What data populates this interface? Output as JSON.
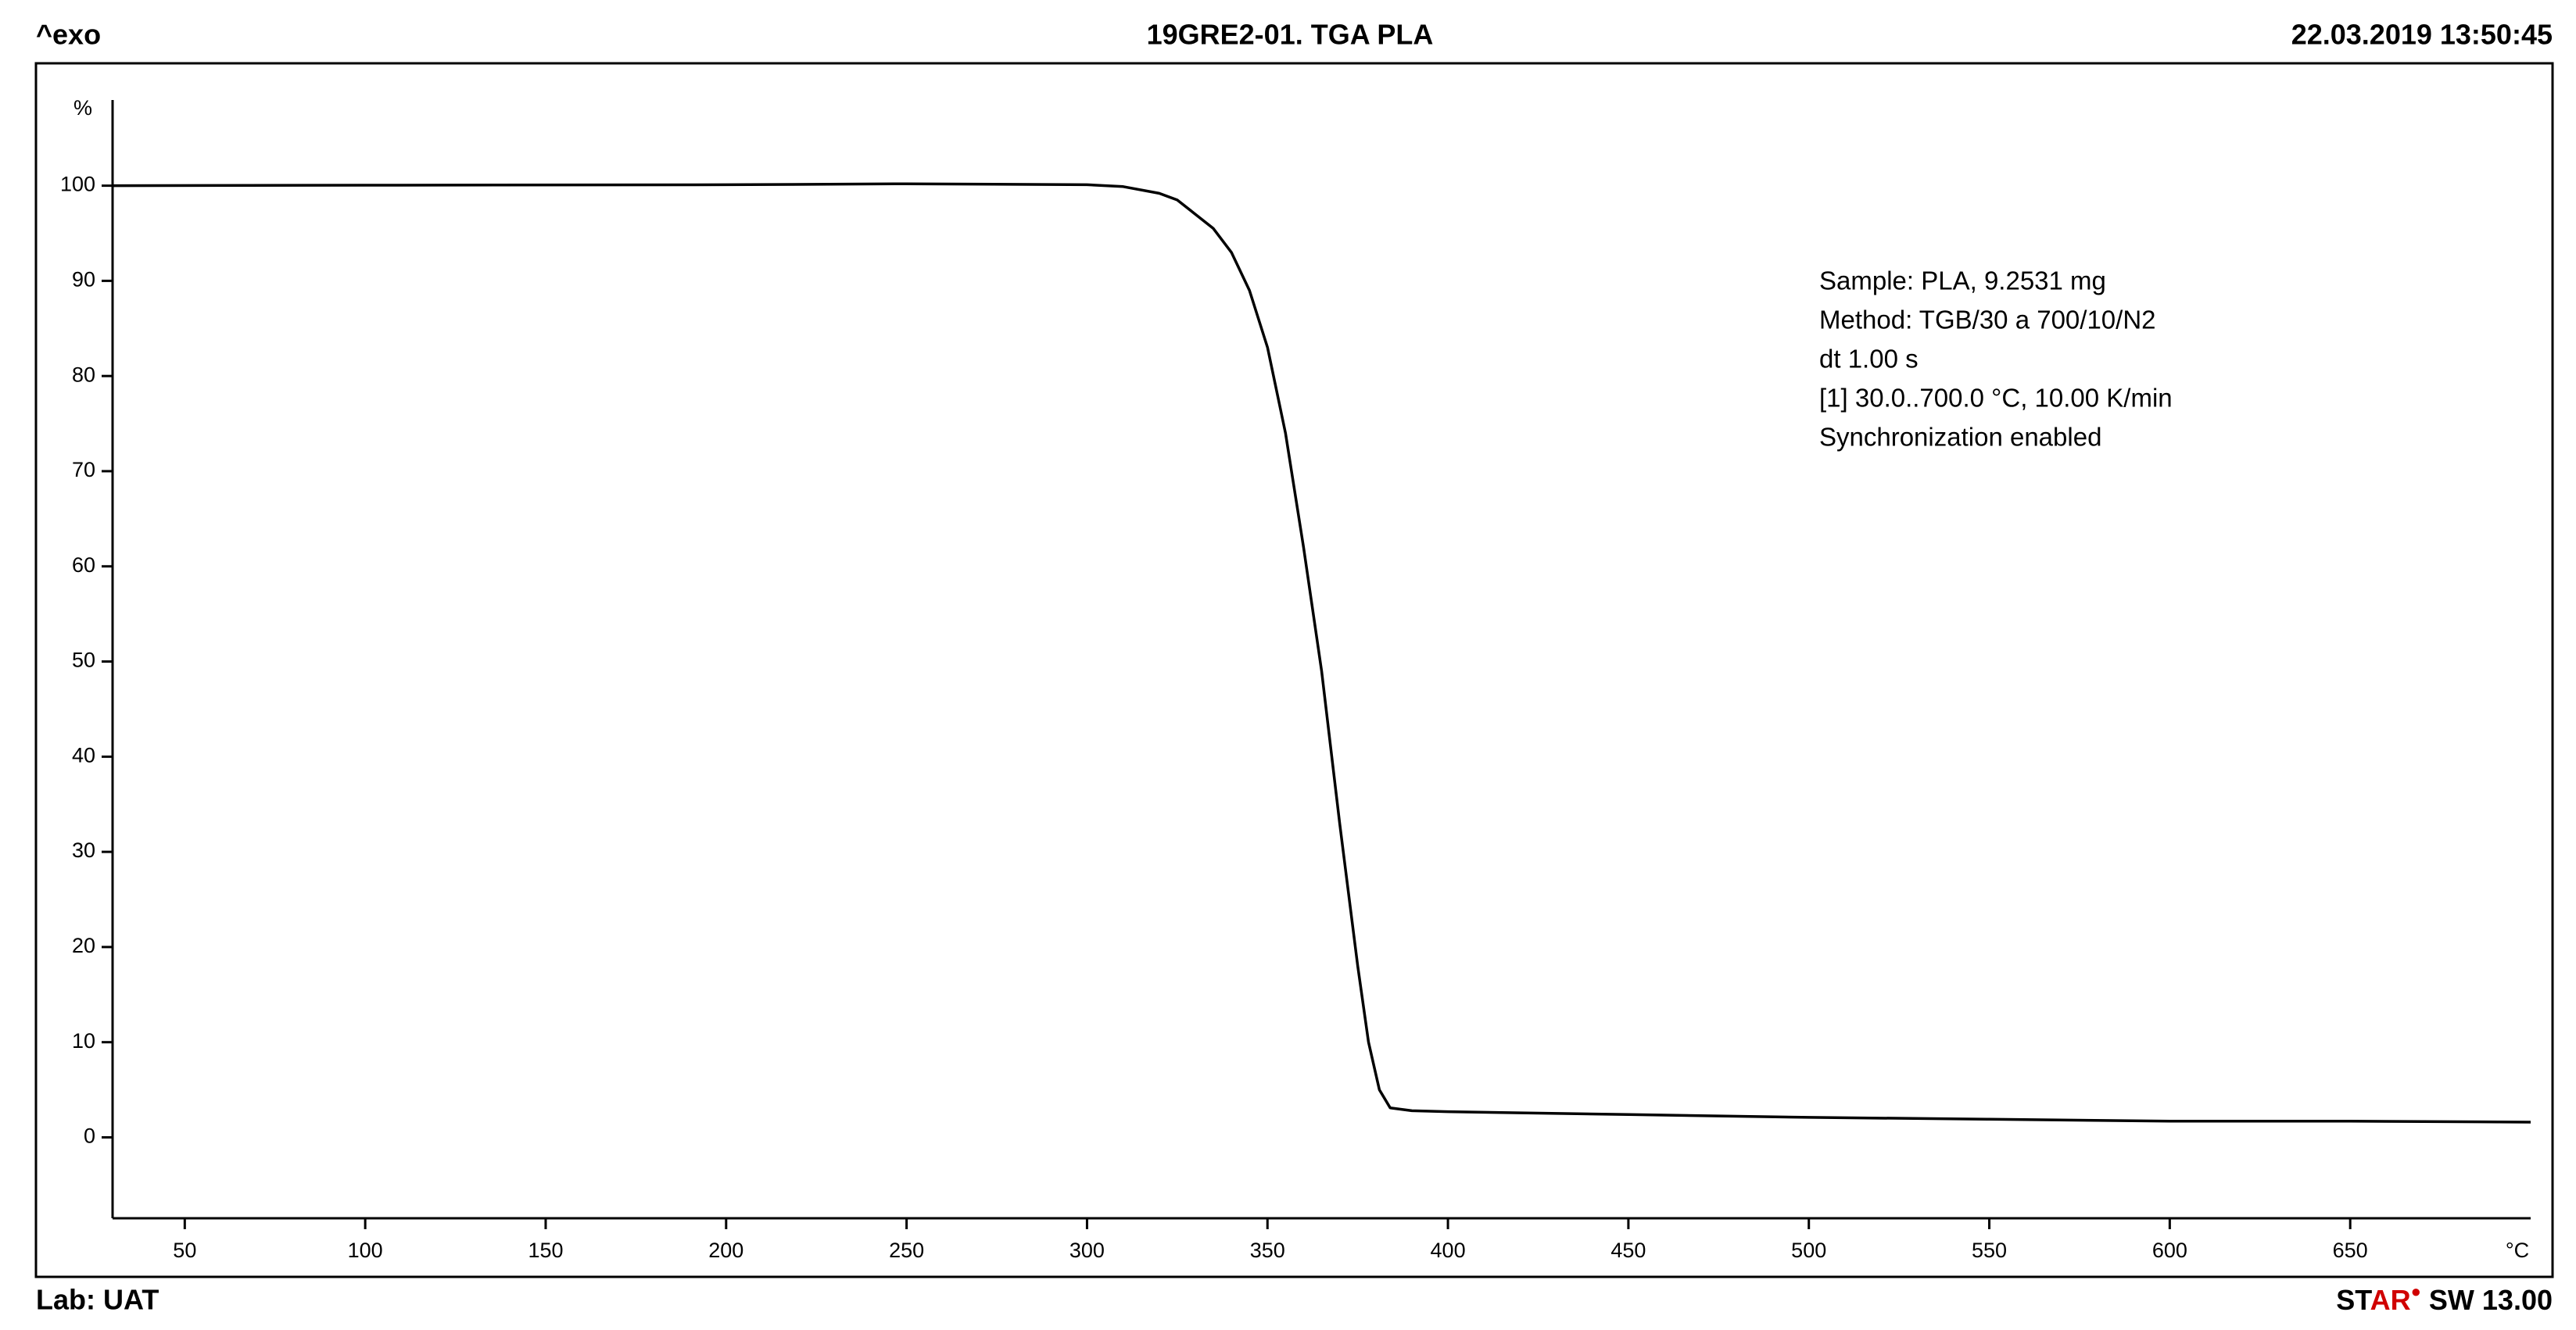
{
  "chart_data": {
    "type": "line",
    "title": "19GRE2-01. TGA PLA",
    "header_left": "^exo",
    "header_right": "22.03.2019 13:50:45",
    "footer_left": "Lab: UAT",
    "footer_brand_start": "ST",
    "footer_brand_end": "AR",
    "footer_version": "SW 13.00",
    "x_unit": "°C",
    "y_unit": "%",
    "annotation": [
      "Sample: PLA, 9.2531 mg",
      "Method: TGB/30 a 700/10/N2",
      "dt 1.00 s",
      "[1] 30.0..700.0 °C, 10.00 K/min",
      "Synchronization enabled"
    ],
    "x": [
      30,
      100,
      200,
      250,
      300,
      310,
      320,
      325,
      330,
      335,
      340,
      345,
      350,
      355,
      360,
      365,
      370,
      375,
      378,
      381,
      384,
      390,
      400,
      450,
      500,
      550,
      600,
      650,
      700
    ],
    "values": [
      100,
      100.05,
      100.1,
      100.2,
      100.1,
      99.9,
      99.2,
      98.5,
      97,
      95.5,
      93,
      89,
      83,
      74,
      62,
      49,
      33,
      18,
      10,
      5,
      3.1,
      2.8,
      2.7,
      2.4,
      2.1,
      1.9,
      1.7,
      1.7,
      1.6
    ],
    "color": "#000000",
    "xlim": [
      30,
      700
    ],
    "xticks": [
      50,
      100,
      150,
      200,
      250,
      300,
      350,
      400,
      450,
      500,
      550,
      600,
      650
    ],
    "ylim": [
      -8.5,
      109
    ],
    "yticks": [
      0,
      10,
      20,
      30,
      40,
      50,
      60,
      70,
      80,
      90,
      100
    ]
  }
}
